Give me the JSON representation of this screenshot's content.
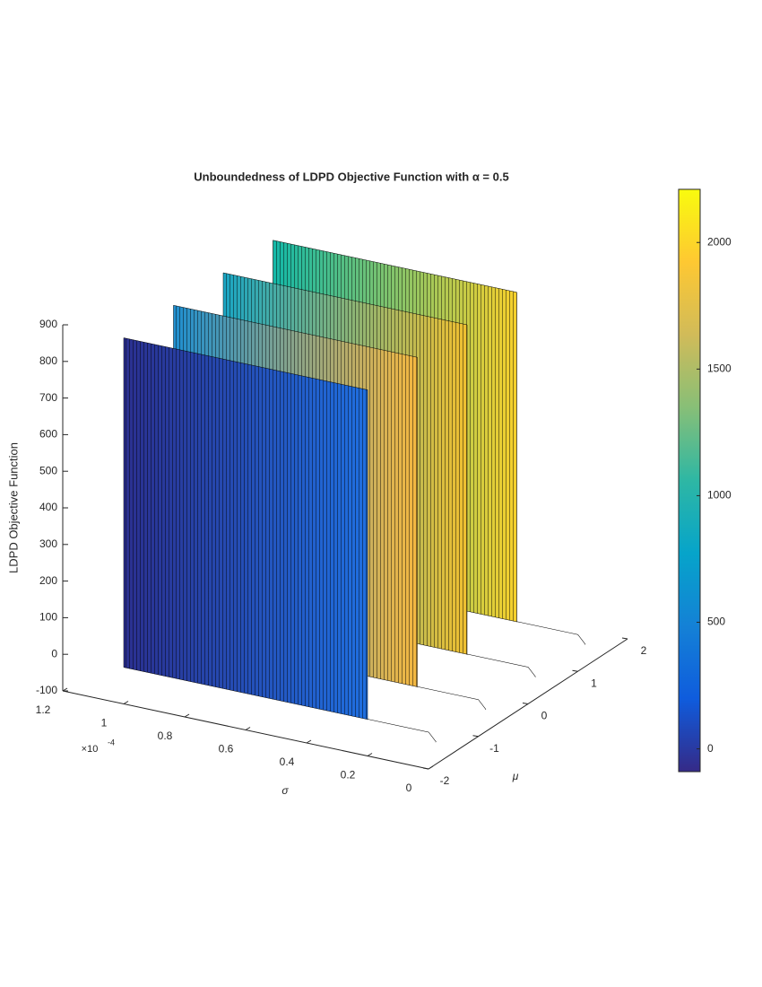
{
  "chart_data": {
    "type": "surface3d",
    "title": "Unboundedness of LDPD Objective Function with α = 0.5",
    "zlabel": "LDPD Objective Function",
    "xlabel": "σ",
    "ylabel": "μ",
    "x_multiplier": {
      "base": "×10",
      "exponent": "-4"
    },
    "xlim": [
      0,
      1.2
    ],
    "xticks": [
      0,
      0.2,
      0.4,
      0.6,
      0.8,
      1,
      1.2
    ],
    "ylim": [
      -2,
      2
    ],
    "yticks": [
      -2,
      -1,
      0,
      1,
      2
    ],
    "zlim": [
      -100,
      900
    ],
    "zticks": [
      -100,
      0,
      100,
      200,
      300,
      400,
      500,
      600,
      700,
      800,
      900
    ],
    "sheets": {
      "mu": [
        -2,
        -1,
        0,
        1
      ],
      "sigma_start": [
        0.2,
        0.2,
        0.2,
        0.2
      ],
      "sigma_end": [
        1.0,
        1.0,
        1.0,
        1.0
      ],
      "z_bottom": [
        0,
        0,
        0,
        0
      ],
      "z_top": [
        900,
        900,
        900,
        900
      ],
      "colors": [
        [
          "#2a2f8f",
          "#1f6fe0"
        ],
        [
          "#1f8fd0",
          "#f5b840"
        ],
        [
          "#1aa6c4",
          "#f0c030"
        ],
        [
          "#13b8a8",
          "#f7d02c"
        ]
      ]
    },
    "colorbar": {
      "clim": [
        -90,
        2210
      ],
      "ticks": [
        0,
        500,
        1000,
        1500,
        2000
      ],
      "colormap": [
        "#352a87",
        "#0f5cdd",
        "#1481d6",
        "#06a4ca",
        "#2eb7a4",
        "#87bf77",
        "#d1bb59",
        "#fec832",
        "#f9fb0e"
      ]
    }
  }
}
